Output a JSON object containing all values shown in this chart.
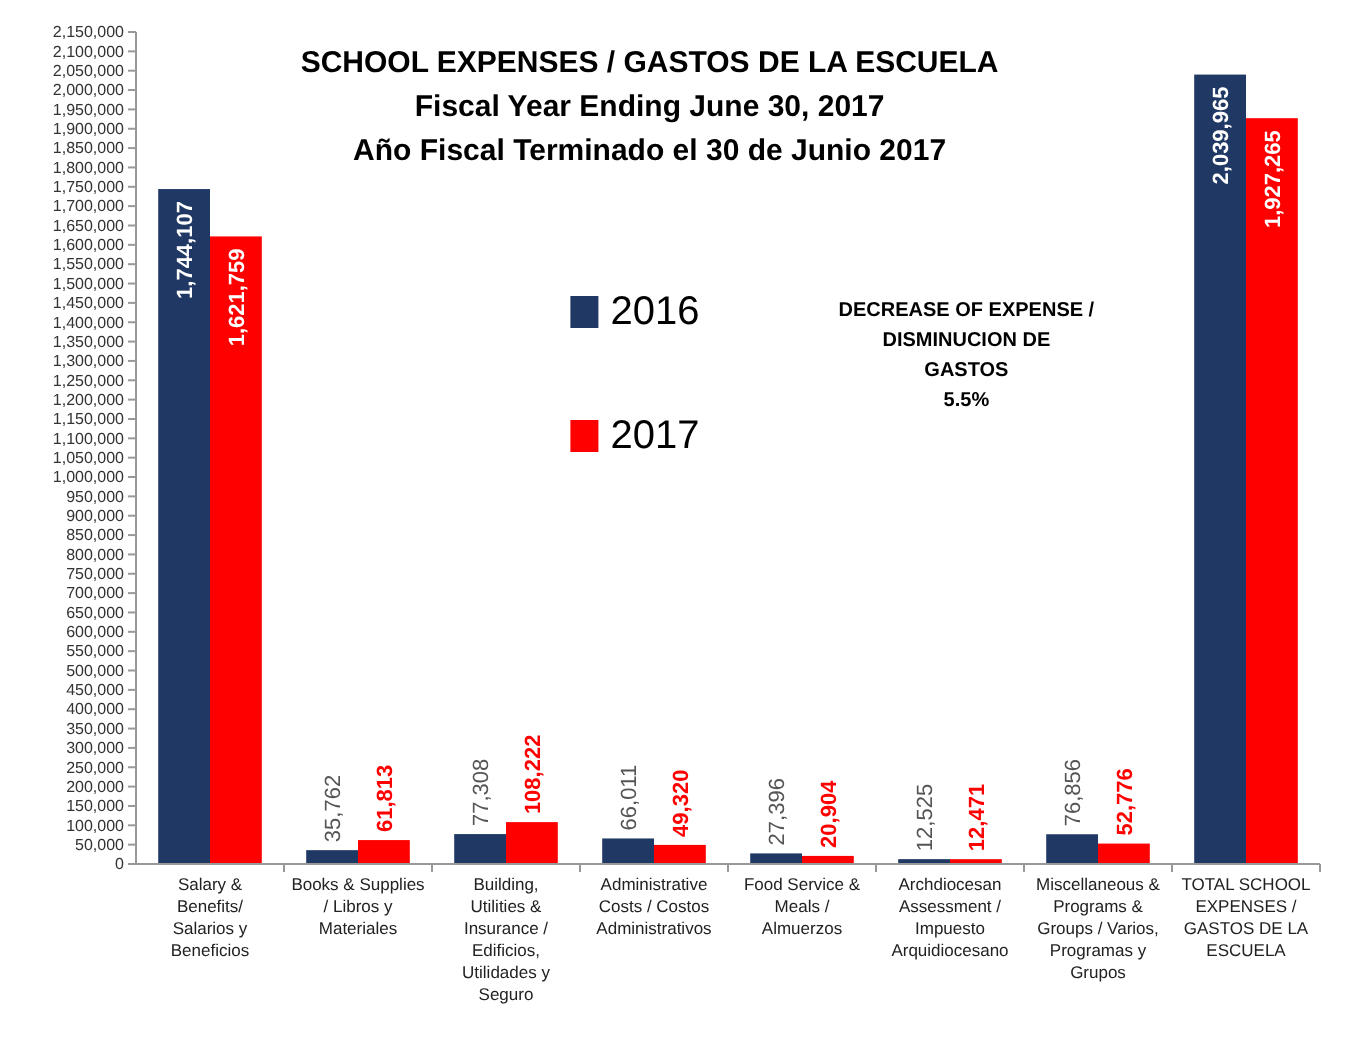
{
  "chart_data": {
    "type": "bar",
    "title": "SCHOOL EXPENSES / GASTOS DE LA ESCUELA",
    "subtitle": "Fiscal Year Ending June 30, 2017\nAño Fiscal Terminado el 30 de Junio 2017",
    "categories": [
      "Salary & Benefits/ Salarios y Beneficios",
      "Books & Supplies / Libros y Materiales",
      "Building, Utilities & Insurance / Edificios, Utilidades y Seguro",
      "Administrative Costs / Costos Administrativos",
      "Food Service & Meals / Almuerzos",
      "Archdiocesan Assessment / Impuesto Arquidiocesano",
      "Miscellaneous & Programs & Groups / Varios, Programas y Grupos",
      "TOTAL SCHOOL EXPENSES / GASTOS DE LA ESCUELA"
    ],
    "series": [
      {
        "name": "2016",
        "color": "#1f3864",
        "values": [
          1744107,
          35762,
          77308,
          66011,
          27396,
          12525,
          76856,
          2039965
        ],
        "value_labels": [
          "1,744,107",
          "35,762",
          "77,308",
          "66,011",
          "27,396",
          "12,525",
          "76,856",
          "2,039,965"
        ]
      },
      {
        "name": "2017",
        "color": "#ff0000",
        "values": [
          1621759,
          61813,
          108222,
          49320,
          20904,
          12471,
          52776,
          1927265
        ],
        "value_labels": [
          "1,621,759",
          "61,813",
          "108,222",
          "49,320",
          "20,904",
          "12,471",
          "52,776",
          "1,927,265"
        ]
      }
    ],
    "ylim": [
      0,
      2150000
    ],
    "yticks": [
      0,
      {
        "value": 50000,
        "label": "50,000"
      },
      {
        "value": 100000,
        "label": "100,000"
      },
      {
        "value": 150000,
        "label": "150,000"
      },
      {
        "value": 200000,
        "label": "200,000"
      },
      {
        "value": 250000,
        "label": "250,000"
      },
      {
        "value": 300000,
        "label": "300,000"
      },
      {
        "value": 350000,
        "label": "350,000"
      },
      {
        "value": 400000,
        "label": "400,000"
      },
      {
        "value": 450000,
        "label": "450,000"
      },
      {
        "value": 500000,
        "label": "500,000"
      },
      {
        "value": 550000,
        "label": "550,000"
      },
      {
        "value": 600000,
        "label": "600,000"
      },
      {
        "value": 650000,
        "label": "650,000"
      },
      {
        "value": 700000,
        "label": "700,000"
      },
      {
        "value": 750000,
        "label": "750,000"
      },
      {
        "value": 800000,
        "label": "800,000"
      },
      {
        "value": 850000,
        "label": "850,000"
      },
      {
        "value": 900000,
        "label": "900,000"
      },
      {
        "value": 950000,
        "label": "950,000"
      },
      {
        "value": 1000000,
        "label": "1,000,000"
      },
      {
        "value": 1050000,
        "label": "1,050,000"
      },
      {
        "value": 1100000,
        "label": "1,100,000"
      },
      {
        "value": 1150000,
        "label": "1,150,000"
      },
      {
        "value": 1200000,
        "label": "1,200,000"
      },
      {
        "value": 1250000,
        "label": "1,250,000"
      },
      {
        "value": 1300000,
        "label": "1,300,000"
      },
      {
        "value": 1350000,
        "label": "1,350,000"
      },
      {
        "value": 1400000,
        "label": "1,400,000"
      },
      {
        "value": 1450000,
        "label": "1,450,000"
      },
      {
        "value": 1500000,
        "label": "1,500,000"
      },
      {
        "value": 1550000,
        "label": "1,550,000"
      },
      {
        "value": 1600000,
        "label": "1,600,000"
      },
      {
        "value": 1650000,
        "label": "1,650,000"
      },
      {
        "value": 1700000,
        "label": "1,700,000"
      },
      {
        "value": 1750000,
        "label": "1,750,000"
      },
      {
        "value": 1800000,
        "label": "1,800,000"
      },
      {
        "value": 1850000,
        "label": "1,850,000"
      },
      {
        "value": 1900000,
        "label": "1,900,000"
      },
      {
        "value": 1950000,
        "label": "1,950,000"
      },
      {
        "value": 2000000,
        "label": "2,000,000"
      },
      {
        "value": 2050000,
        "label": "2,050,000"
      },
      {
        "value": 2100000,
        "label": "2,100,000"
      },
      {
        "value": 2150000,
        "label": "2,150,000"
      }
    ],
    "grid": false,
    "legend": "top",
    "annotations": [
      "DECREASE OF EXPENSE  /\nDISMINUCION DE\nGASTOS\n5.5%"
    ]
  }
}
